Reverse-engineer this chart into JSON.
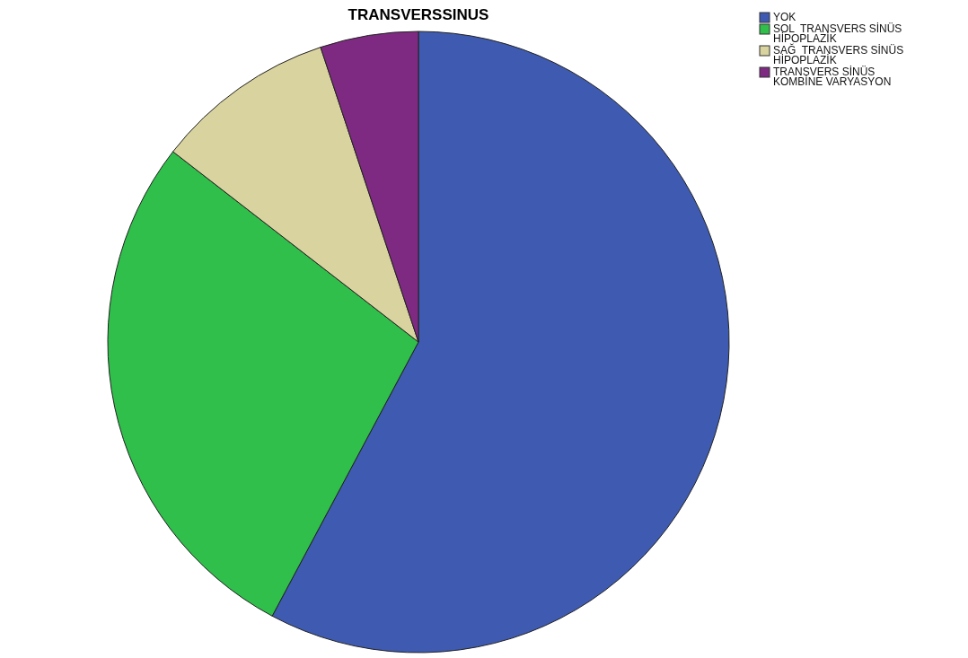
{
  "chart_data": {
    "type": "pie",
    "title": "TRANSVERSSINUS",
    "categories": [
      "YOK",
      "SOL  TRANSVERS SİNÜS\nHİPOPLAZİK",
      "SAĞ  TRANSVERS SİNÜS\nHİPOPLAZİK",
      "TRANSVERS SİNÜS\nKOMBİNE VARYASYON"
    ],
    "values": [
      57.8,
      27.7,
      9.4,
      5.1
    ],
    "colors": [
      "#3f5bb1",
      "#2fbf4a",
      "#d9d39f",
      "#7f2a82"
    ],
    "legend": "top right"
  }
}
